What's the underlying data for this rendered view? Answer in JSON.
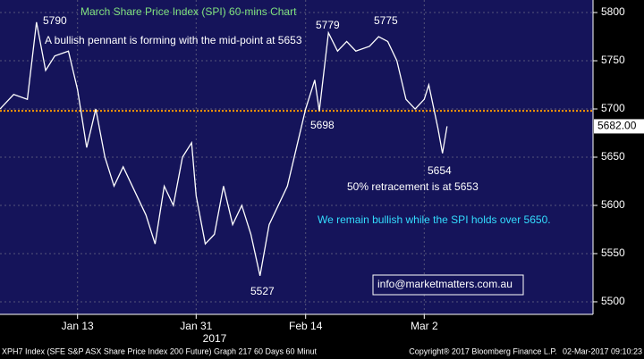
{
  "chart_data": {
    "type": "line",
    "title": "March Share Price Index (SPI) 60-mins Chart",
    "annotations": [
      "A bullish pennant is forming with the mid-point at 5653",
      "5790",
      "5779",
      "5775",
      "5698",
      "5654",
      "50% retracement is at 5653",
      "We remain bullish while the SPI holds over 5650.",
      "5527",
      "info@marketmatters.com.au"
    ],
    "x": [
      0,
      3,
      6,
      8,
      10,
      12,
      15,
      17,
      19,
      21,
      23,
      25,
      27,
      30,
      32,
      34,
      36,
      38,
      40,
      42,
      43,
      45,
      47,
      49,
      51,
      53,
      55,
      57,
      59,
      61,
      63,
      65,
      67,
      69,
      70,
      72,
      74,
      76,
      78,
      81,
      83,
      85,
      87,
      89,
      91,
      93,
      94,
      96,
      97,
      98
    ],
    "series": [
      {
        "name": "XPH7 Index",
        "color": "#ffffff",
        "values": [
          5700,
          5715,
          5710,
          5790,
          5740,
          5755,
          5760,
          5720,
          5660,
          5700,
          5650,
          5620,
          5640,
          5610,
          5590,
          5560,
          5620,
          5600,
          5650,
          5665,
          5610,
          5560,
          5570,
          5620,
          5580,
          5600,
          5570,
          5527,
          5580,
          5600,
          5620,
          5660,
          5700,
          5730,
          5698,
          5779,
          5760,
          5770,
          5760,
          5765,
          5775,
          5770,
          5750,
          5710,
          5700,
          5710,
          5725,
          5680,
          5654,
          5682
        ]
      }
    ],
    "reference_line": {
      "value": 5698,
      "color": "#ff9900"
    },
    "last_price": {
      "value": 5682,
      "label": "5682.00"
    },
    "xlim": [
      0,
      130
    ],
    "xticks": [
      {
        "value": 17,
        "label": "Jan 13"
      },
      {
        "value": 43,
        "label": "Jan 31"
      },
      {
        "value": 67,
        "label": "Feb 14"
      },
      {
        "value": 93,
        "label": "Mar 2"
      }
    ],
    "x_axis_year": "2017",
    "ylim": [
      5487,
      5813
    ],
    "yticks": [
      5500,
      5550,
      5600,
      5650,
      5700,
      5750,
      5800
    ],
    "grid": true,
    "footer": [
      "XPH7 Index (SFE S&P ASX Share Price Index 200 Future) Graph 217 60 Days 60 Minut",
      "Copyright® 2017 Bloomberg Finance L.P.",
      "02-Mar-2017 09:10:23"
    ]
  }
}
